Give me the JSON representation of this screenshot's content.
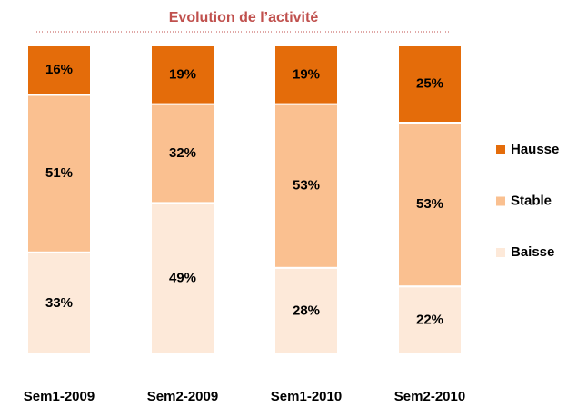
{
  "chart_data": {
    "type": "stacked_bar",
    "title": "Evolution de l’activité",
    "categories": [
      "Sem1-2009",
      "Sem2-2009",
      "Sem1-2010",
      "Sem2-2010"
    ],
    "series": [
      {
        "name": "Baisse",
        "color": "#fde9d9",
        "values": [
          33,
          49,
          28,
          22
        ],
        "value_labels": [
          "33%",
          "49%",
          "28%",
          "22%"
        ]
      },
      {
        "name": "Stable",
        "color": "#fac090",
        "values": [
          51,
          32,
          53,
          53
        ],
        "value_labels": [
          "51%",
          "32%",
          "53%",
          "53%"
        ]
      },
      {
        "name": "Hausse",
        "color": "#e46c0a",
        "values": [
          16,
          19,
          19,
          25
        ],
        "value_labels": [
          "16%",
          "19%",
          "19%",
          "25%"
        ]
      }
    ],
    "ylim": [
      0,
      100
    ]
  }
}
